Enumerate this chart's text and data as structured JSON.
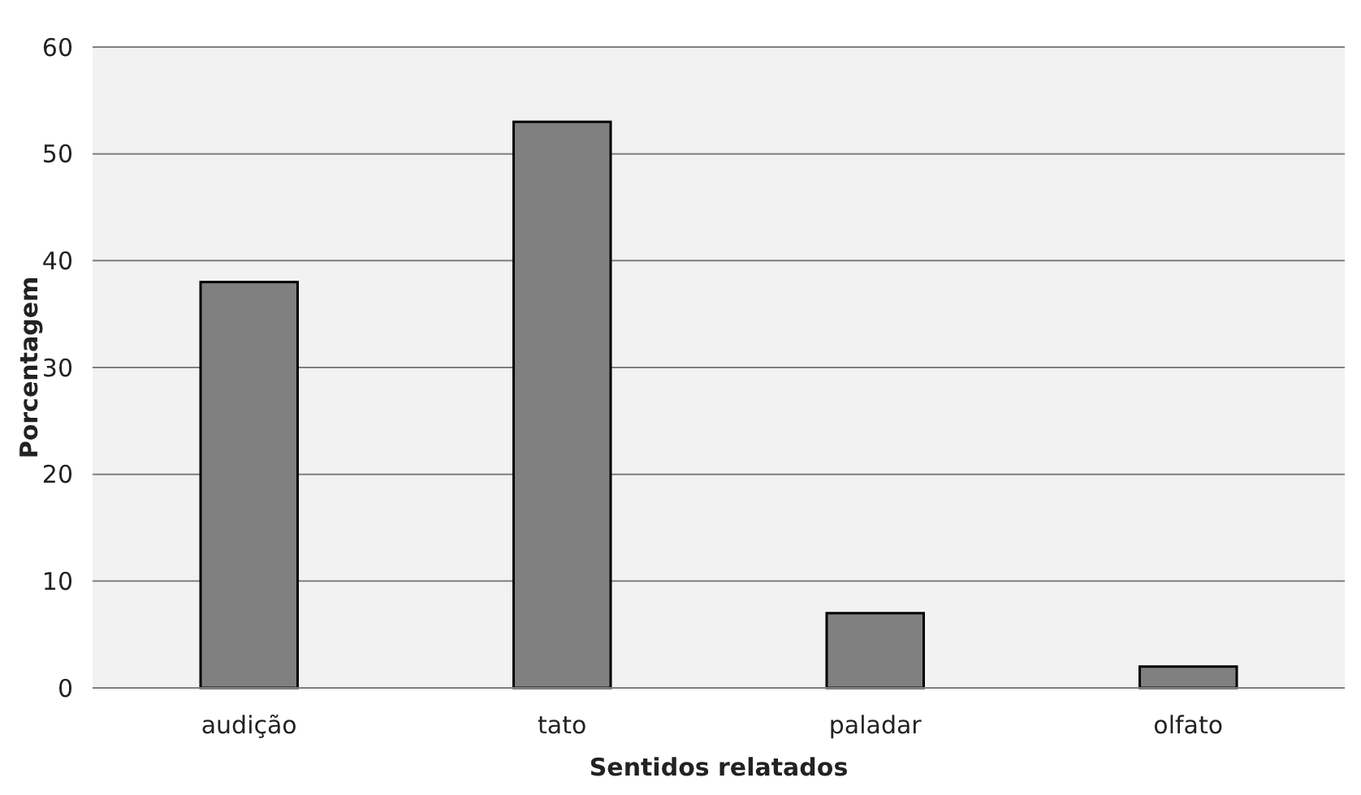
{
  "chart_data": {
    "type": "bar",
    "xlabel": "Sentidos relatados",
    "ylabel": "Porcentagem",
    "categories": [
      "audição",
      "tato",
      "paladar",
      "olfato"
    ],
    "values": [
      38,
      53,
      7,
      2
    ],
    "color": "#808080",
    "ylim": [
      0,
      60
    ],
    "yticks": [
      0,
      10,
      20,
      30,
      40,
      50,
      60
    ],
    "grid": "y"
  }
}
